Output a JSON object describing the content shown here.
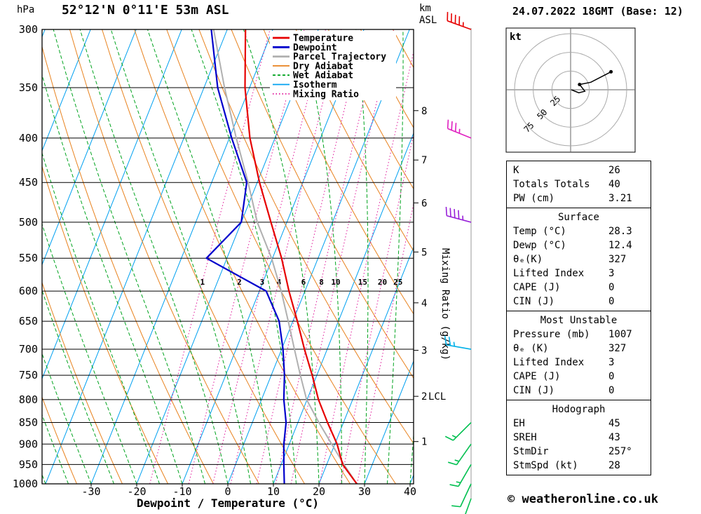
{
  "header": {
    "pressure_unit": "hPa",
    "station_title": "52°12'N 0°11'E 53m ASL",
    "datetime_title": "24.07.2022 18GMT (Base: 12)",
    "altitude_unit_line1": "km",
    "altitude_unit_line2": "ASL"
  },
  "axes": {
    "pressure_ticks": [
      300,
      350,
      400,
      450,
      500,
      550,
      600,
      650,
      700,
      750,
      800,
      850,
      900,
      950,
      1000
    ],
    "temp_ticks": [
      -30,
      -20,
      -10,
      0,
      10,
      20,
      30,
      40
    ],
    "xlabel": "Dewpoint / Temperature (°C)",
    "right_axis_label": "Mixing Ratio (g/kg)",
    "km_ticks": [
      1,
      2,
      3,
      4,
      5,
      6,
      7,
      8
    ],
    "lcl_label": "LCL",
    "lcl_km": 2,
    "mixing_ratio_values": [
      1,
      2,
      3,
      4,
      6,
      8,
      10,
      15,
      20,
      25
    ]
  },
  "legend": [
    {
      "label": "Temperature",
      "color": "#e60000",
      "width": 2,
      "dash": ""
    },
    {
      "label": "Dewpoint",
      "color": "#0000cc",
      "width": 2,
      "dash": ""
    },
    {
      "label": "Parcel Trajectory",
      "color": "#b0b0b0",
      "width": 2,
      "dash": ""
    },
    {
      "label": "Dry Adiabat",
      "color": "#e8821e",
      "width": 1,
      "dash": ""
    },
    {
      "label": "Wet Adiabat",
      "color": "#00a31e",
      "width": 1,
      "dash": "4 3"
    },
    {
      "label": "Isotherm",
      "color": "#00a0f0",
      "width": 1,
      "dash": ""
    },
    {
      "label": "Mixing Ratio",
      "color": "#e0189b",
      "width": 1,
      "dash": "1.5 3"
    }
  ],
  "plot_colors": {
    "isotherm": "#00a0f0",
    "dry_adiabat": "#e8821e",
    "wet_adiabat": "#00a31e",
    "mixing_ratio": "#e0189b",
    "grid": "#000000",
    "barb_axis": "#999999"
  },
  "chart_data": {
    "type": "line",
    "variant": "skew-t-log-p",
    "title": "52°12'N 0°11'E 53m ASL sounding 24.07.2022 18GMT",
    "xlabel": "Dewpoint / Temperature (°C)",
    "ylabel": "Pressure (hPa)",
    "xlim": [
      -40.8,
      40.8
    ],
    "ylim": [
      1000,
      300
    ],
    "y_scale": "log",
    "pressure_levels": [
      1000,
      950,
      900,
      850,
      800,
      750,
      700,
      650,
      600,
      550,
      500,
      450,
      400,
      350,
      300
    ],
    "series": [
      {
        "name": "Parcel Trajectory",
        "color": "#b0b0b0",
        "width": 2,
        "values": [
          28.3,
          23.8,
          19.3,
          14.6,
          9.9,
          6.4,
          2.8,
          -1.0,
          -5.2,
          -10.2,
          -16.5,
          -22.0,
          -28.5,
          -35.5,
          -43.0
        ]
      },
      {
        "name": "Temperature",
        "color": "#e60000",
        "width": 2.2,
        "values": [
          28.3,
          23.5,
          20.5,
          16.5,
          12.5,
          9.0,
          5.0,
          1.0,
          -3.5,
          -8.0,
          -13.5,
          -19.5,
          -25.5,
          -31.0,
          -36.0
        ]
      },
      {
        "name": "Dewpoint",
        "color": "#0000cc",
        "width": 2.2,
        "values": [
          12.4,
          10.6,
          8.8,
          7.4,
          4.9,
          2.9,
          0.3,
          -3.0,
          -8.5,
          -24.5,
          -20.0,
          -22.3,
          -29.5,
          -37.0,
          -43.5
        ]
      }
    ]
  },
  "wind_barbs": [
    {
      "pressure": 300,
      "speed_kt": 45,
      "dir_deg": 290,
      "color": "#e60000"
    },
    {
      "pressure": 400,
      "speed_kt": 35,
      "dir_deg": 292,
      "color": "#e020c0"
    },
    {
      "pressure": 500,
      "speed_kt": 45,
      "dir_deg": 285,
      "color": "#9820d8"
    },
    {
      "pressure": 700,
      "speed_kt": 25,
      "dir_deg": 280,
      "color": "#00b0e8"
    },
    {
      "pressure": 850,
      "speed_kt": 15,
      "dir_deg": 225,
      "color": "#00c050"
    },
    {
      "pressure": 900,
      "speed_kt": 15,
      "dir_deg": 215,
      "color": "#00c050"
    },
    {
      "pressure": 950,
      "speed_kt": 15,
      "dir_deg": 210,
      "color": "#00c050"
    },
    {
      "pressure": 1000,
      "speed_kt": 10,
      "dir_deg": 205,
      "color": "#00c050"
    },
    {
      "pressure": 1040,
      "speed_kt": 10,
      "dir_deg": 200,
      "color": "#00c050"
    }
  ],
  "hodograph": {
    "unit_label": "kt",
    "rings_kt": [
      25,
      50,
      75
    ],
    "trace_uv_kt": [
      [
        1,
        0
      ],
      [
        11,
        -4
      ],
      [
        19,
        -2
      ],
      [
        12,
        7
      ],
      [
        27,
        10
      ],
      [
        54,
        24
      ]
    ],
    "dots_uv_kt": [
      [
        12,
        7
      ],
      [
        54,
        24
      ]
    ]
  },
  "tables": [
    {
      "header": null,
      "rows": [
        [
          "K",
          "26"
        ],
        [
          "Totals Totals",
          "40"
        ],
        [
          "PW (cm)",
          "3.21"
        ]
      ]
    },
    {
      "header": "Surface",
      "rows": [
        [
          "Temp (°C)",
          "28.3"
        ],
        [
          "Dewp (°C)",
          "12.4"
        ],
        [
          "θₑ(K)",
          "327"
        ],
        [
          "Lifted Index",
          "3"
        ],
        [
          "CAPE (J)",
          "0"
        ],
        [
          "CIN (J)",
          "0"
        ]
      ]
    },
    {
      "header": "Most Unstable",
      "rows": [
        [
          "Pressure (mb)",
          "1007"
        ],
        [
          "θₑ (K)",
          "327"
        ],
        [
          "Lifted Index",
          "3"
        ],
        [
          "CAPE (J)",
          "0"
        ],
        [
          "CIN (J)",
          "0"
        ]
      ]
    },
    {
      "header": "Hodograph",
      "rows": [
        [
          "EH",
          "45"
        ],
        [
          "SREH",
          "43"
        ],
        [
          "StmDir",
          "257°"
        ],
        [
          "StmSpd (kt)",
          "28"
        ]
      ]
    }
  ],
  "footer": {
    "credit": "© weatheronline.co.uk"
  }
}
